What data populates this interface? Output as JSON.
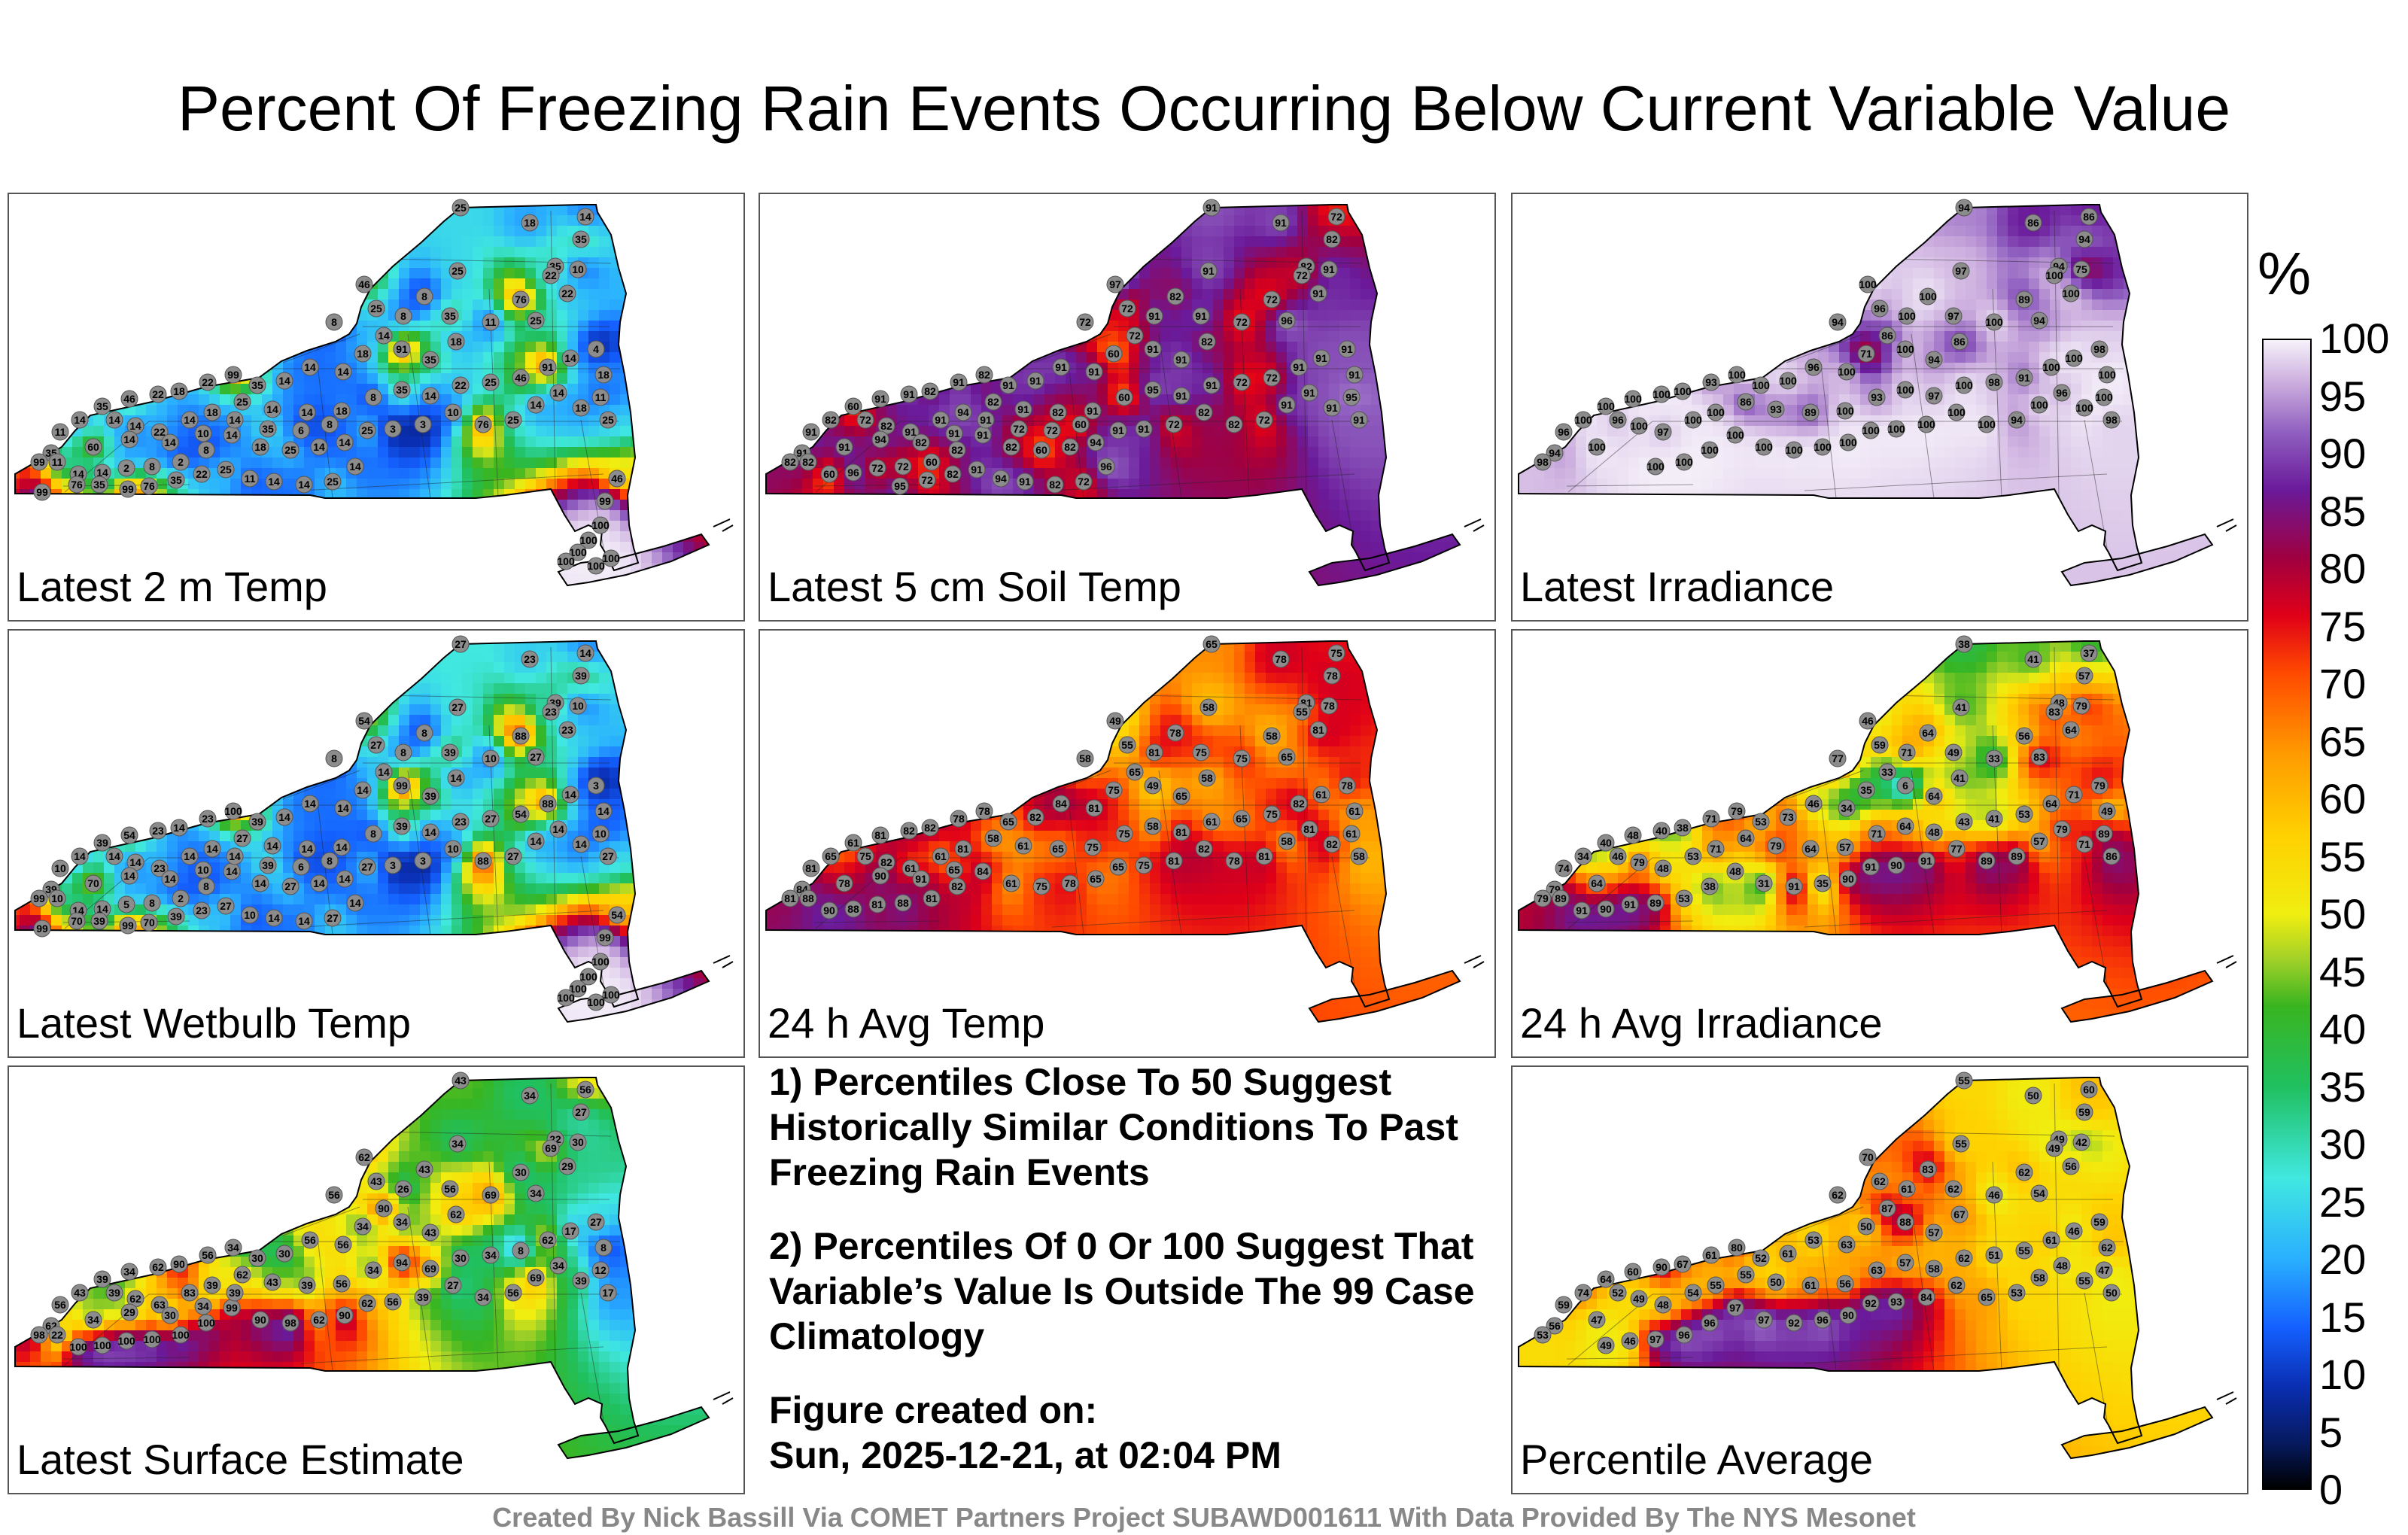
{
  "title": "Percent Of Freezing Rain Events Occurring Below Current Variable Value",
  "panels": [
    {
      "label": "Latest 2 m Temp"
    },
    {
      "label": "Latest 5 cm Soil Temp"
    },
    {
      "label": "Latest Irradiance"
    },
    {
      "label": "Latest Wetbulb Temp"
    },
    {
      "label": "24 h Avg Temp"
    },
    {
      "label": "24 h Avg Irradiance"
    },
    {
      "label": "Latest Surface Estimate"
    },
    {
      "label": "Percentile Average"
    }
  ],
  "notes": {
    "note1": "1) Percentiles Close To 50 Suggest Historically Similar Conditions To Past Freezing Rain Events",
    "note2": "2) Percentiles Of 0 Or 100 Suggest That Variable’s Value Is Outside The 99 Case Climatology",
    "created_label": "Figure created on:",
    "created_value": "Sun, 2025-12-21, at 02:04 PM"
  },
  "colorbar": {
    "unit": "%",
    "ticks": [
      "100",
      "95",
      "90",
      "85",
      "80",
      "75",
      "70",
      "65",
      "60",
      "55",
      "50",
      "45",
      "40",
      "35",
      "30",
      "25",
      "20",
      "15",
      "10",
      "5",
      "0"
    ]
  },
  "credit": "Created By Nick Bassill Via COMET Partners Project SUBAWD001611 With Data Provided By The NYS Mesonet",
  "station_values": [
    [
      "25",
      "18",
      "14",
      "35",
      "35",
      "25",
      "46",
      "25",
      "8",
      "8",
      "8",
      "35",
      "76",
      "22",
      "10",
      "22",
      "25",
      "11",
      "18",
      "35",
      "91",
      "14",
      "18",
      "14",
      "14",
      "14",
      "35",
      "99",
      "22",
      "18",
      "22",
      "46",
      "35",
      "14",
      "11",
      "35",
      "99",
      "60",
      "14",
      "14",
      "22",
      "14",
      "18",
      "25",
      "14",
      "14",
      "18",
      "8",
      "35",
      "14",
      "22",
      "25",
      "46",
      "91",
      "14",
      "4",
      "18",
      "11",
      "25",
      "18",
      "14",
      "14",
      "25",
      "76",
      "10",
      "3",
      "3",
      "25",
      "14",
      "14",
      "25",
      "18",
      "14",
      "8",
      "2",
      "8",
      "2",
      "14",
      "14",
      "11",
      "14",
      "14",
      "10",
      "14",
      "35",
      "6",
      "8",
      "14",
      "25",
      "14",
      "14",
      "11",
      "25",
      "22",
      "35",
      "76",
      "99",
      "35",
      "76",
      "99",
      "46",
      "99",
      "100",
      "100",
      "100",
      "100",
      "100",
      "100"
    ],
    [
      "91",
      "91",
      "72",
      "82",
      "82",
      "91",
      "97",
      "72",
      "72",
      "91",
      "82",
      "91",
      "72",
      "72",
      "91",
      "91",
      "96",
      "72",
      "82",
      "91",
      "91",
      "72",
      "60",
      "91",
      "91",
      "91",
      "91",
      "82",
      "91",
      "82",
      "91",
      "91",
      "60",
      "82",
      "91",
      "91",
      "82",
      "91",
      "72",
      "82",
      "91",
      "91",
      "94",
      "82",
      "91",
      "82",
      "91",
      "60",
      "95",
      "91",
      "91",
      "72",
      "72",
      "91",
      "91",
      "91",
      "91",
      "95",
      "91",
      "91",
      "91",
      "91",
      "72",
      "82",
      "82",
      "72",
      "91",
      "91",
      "94",
      "82",
      "60",
      "82",
      "91",
      "82",
      "60",
      "72",
      "72",
      "96",
      "60",
      "82",
      "94",
      "82",
      "91",
      "91",
      "72",
      "72",
      "60",
      "96",
      "72",
      "82",
      "91",
      "94",
      "91",
      "82",
      "72",
      "95"
    ],
    [
      "94",
      "86",
      "86",
      "94",
      "94",
      "97",
      "100",
      "96",
      "94",
      "100",
      "100",
      "97",
      "89",
      "100",
      "75",
      "100",
      "94",
      "100",
      "86",
      "94",
      "100",
      "86",
      "71",
      "100",
      "96",
      "100",
      "100",
      "100",
      "93",
      "100",
      "100",
      "100",
      "100",
      "100",
      "96",
      "94",
      "98",
      "100",
      "96",
      "100",
      "97",
      "100",
      "100",
      "86",
      "93",
      "89",
      "100",
      "93",
      "100",
      "97",
      "100",
      "98",
      "91",
      "100",
      "100",
      "98",
      "100",
      "100",
      "98",
      "100",
      "96",
      "100",
      "94",
      "100",
      "100",
      "100",
      "100",
      "100",
      "100",
      "100",
      "100",
      "100",
      "100",
      "100",
      "100",
      "100"
    ],
    [
      "27",
      "23",
      "14",
      "39",
      "39",
      "27",
      "54",
      "27",
      "8",
      "8",
      "8",
      "39",
      "88",
      "23",
      "10",
      "23",
      "27",
      "10",
      "14",
      "39",
      "99",
      "14",
      "14",
      "14",
      "14",
      "14",
      "39",
      "100",
      "23",
      "14",
      "23",
      "54",
      "39",
      "14",
      "10",
      "39",
      "99",
      "70",
      "14",
      "14",
      "23",
      "14",
      "14",
      "27",
      "14",
      "14",
      "14",
      "8",
      "39",
      "14",
      "23",
      "27",
      "54",
      "88",
      "14",
      "3",
      "14",
      "10",
      "27",
      "14",
      "14",
      "14",
      "27",
      "88",
      "10",
      "3",
      "3",
      "27",
      "14",
      "14",
      "27",
      "14",
      "14",
      "8",
      "2",
      "8",
      "5",
      "14",
      "14",
      "10",
      "14",
      "14",
      "10",
      "14",
      "39",
      "6",
      "8",
      "14",
      "27",
      "14",
      "14",
      "10",
      "27",
      "23",
      "39",
      "70",
      "99",
      "39",
      "70",
      "99",
      "54",
      "99",
      "100",
      "100",
      "100",
      "100",
      "100",
      "100"
    ],
    [
      "65",
      "78",
      "75",
      "78",
      "81",
      "58",
      "49",
      "55",
      "58",
      "81",
      "78",
      "75",
      "58",
      "55",
      "78",
      "81",
      "65",
      "75",
      "58",
      "65",
      "49",
      "65",
      "75",
      "81",
      "84",
      "82",
      "65",
      "78",
      "78",
      "82",
      "82",
      "81",
      "61",
      "65",
      "81",
      "84",
      "81",
      "78",
      "75",
      "82",
      "61",
      "61",
      "81",
      "58",
      "61",
      "65",
      "75",
      "75",
      "58",
      "81",
      "61",
      "65",
      "75",
      "82",
      "61",
      "78",
      "61",
      "61",
      "58",
      "82",
      "81",
      "58",
      "81",
      "78",
      "82",
      "81",
      "75",
      "65",
      "65",
      "78",
      "75",
      "61",
      "84",
      "82",
      "81",
      "88",
      "81",
      "88",
      "90",
      "88",
      "90",
      "91",
      "65"
    ],
    [
      "38",
      "41",
      "37",
      "57",
      "48",
      "41",
      "46",
      "59",
      "77",
      "71",
      "64",
      "49",
      "56",
      "83",
      "79",
      "64",
      "83",
      "33",
      "41",
      "64",
      "6",
      "33",
      "35",
      "34",
      "46",
      "73",
      "53",
      "79",
      "71",
      "38",
      "40",
      "48",
      "40",
      "34",
      "74",
      "79",
      "79",
      "64",
      "46",
      "79",
      "48",
      "53",
      "71",
      "64",
      "79",
      "64",
      "57",
      "71",
      "64",
      "48",
      "43",
      "41",
      "53",
      "64",
      "71",
      "79",
      "49",
      "89",
      "86",
      "71",
      "79",
      "57",
      "89",
      "89",
      "77",
      "91",
      "90",
      "91",
      "90",
      "35",
      "91",
      "31",
      "48",
      "38",
      "53",
      "89",
      "91",
      "90",
      "91",
      "89"
    ],
    [
      "43",
      "34",
      "56",
      "27",
      "22",
      "34",
      "62",
      "43",
      "56",
      "26",
      "43",
      "56",
      "30",
      "69",
      "30",
      "29",
      "34",
      "69",
      "62",
      "43",
      "34",
      "90",
      "34",
      "56",
      "56",
      "30",
      "30",
      "34",
      "56",
      "90",
      "62",
      "34",
      "39",
      "43",
      "56",
      "62",
      "98",
      "34",
      "39",
      "62",
      "63",
      "83",
      "39",
      "62",
      "43",
      "39",
      "56",
      "34",
      "94",
      "69",
      "30",
      "34",
      "8",
      "62",
      "17",
      "27",
      "8",
      "12",
      "17",
      "39",
      "34",
      "69",
      "56",
      "34",
      "27",
      "39",
      "56",
      "62",
      "90",
      "62",
      "98",
      "90",
      "99",
      "100",
      "100",
      "100",
      "100",
      "100",
      "100",
      "22",
      "29",
      "30",
      "34",
      "39"
    ],
    [
      "55",
      "50",
      "60",
      "59",
      "49",
      "55",
      "70",
      "62",
      "62",
      "61",
      "83",
      "62",
      "62",
      "49",
      "42",
      "56",
      "54",
      "46",
      "67",
      "57",
      "88",
      "87",
      "50",
      "63",
      "53",
      "61",
      "52",
      "80",
      "61",
      "67",
      "90",
      "60",
      "64",
      "74",
      "59",
      "56",
      "53",
      "47",
      "52",
      "49",
      "48",
      "54",
      "55",
      "55",
      "50",
      "61",
      "56",
      "63",
      "57",
      "58",
      "62",
      "51",
      "55",
      "61",
      "46",
      "59",
      "62",
      "47",
      "50",
      "55",
      "48",
      "58",
      "53",
      "65",
      "62",
      "84",
      "93",
      "92",
      "90",
      "96",
      "92",
      "97",
      "97",
      "96",
      "96",
      "97",
      "46",
      "49"
    ]
  ]
}
